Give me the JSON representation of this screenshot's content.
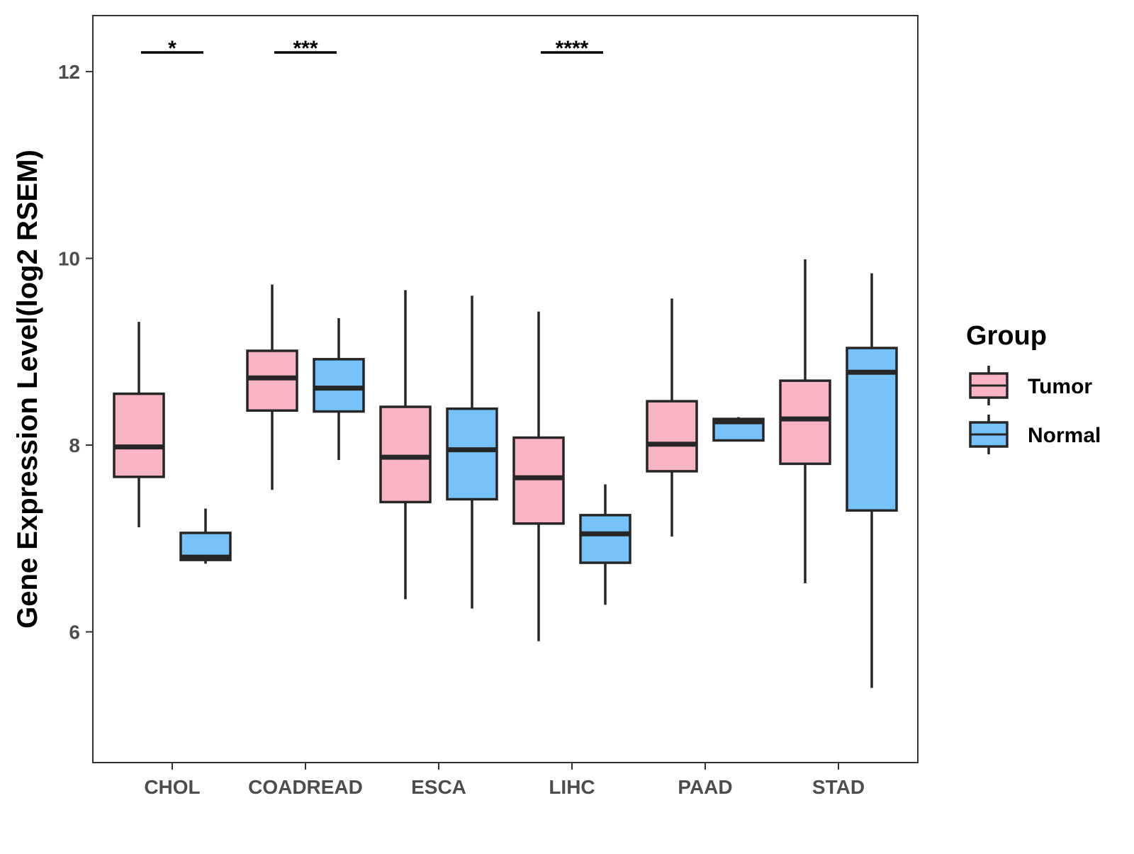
{
  "chart_data": {
    "type": "box",
    "title": "",
    "xlabel": "",
    "ylabel": "Gene Expression Level(log2 RSEM)",
    "ylim": [
      4.6,
      12.6
    ],
    "yticks": [
      6,
      8,
      10,
      12
    ],
    "categories": [
      "CHOL",
      "COADREAD",
      "ESCA",
      "LIHC",
      "PAAD",
      "STAD"
    ],
    "legend": {
      "title": "Group",
      "position": "right",
      "entries": [
        "Tumor",
        "Normal"
      ]
    },
    "series": [
      {
        "name": "Tumor",
        "color": "#FBB4C4",
        "boxes": [
          {
            "category": "CHOL",
            "min": 7.12,
            "q1": 7.66,
            "median": 7.98,
            "q3": 8.55,
            "max": 9.32
          },
          {
            "category": "COADREAD",
            "min": 7.52,
            "q1": 8.37,
            "median": 8.72,
            "q3": 9.01,
            "max": 9.72
          },
          {
            "category": "ESCA",
            "min": 6.35,
            "q1": 7.39,
            "median": 7.87,
            "q3": 8.41,
            "max": 9.66
          },
          {
            "category": "LIHC",
            "min": 5.9,
            "q1": 7.16,
            "median": 7.65,
            "q3": 8.08,
            "max": 9.43
          },
          {
            "category": "PAAD",
            "min": 7.02,
            "q1": 7.72,
            "median": 8.01,
            "q3": 8.47,
            "max": 9.57
          },
          {
            "category": "STAD",
            "min": 6.52,
            "q1": 7.8,
            "median": 8.28,
            "q3": 8.69,
            "max": 9.99
          }
        ]
      },
      {
        "name": "Normal",
        "color": "#74C2F8",
        "boxes": [
          {
            "category": "CHOL",
            "min": 6.73,
            "q1": 6.77,
            "median": 6.8,
            "q3": 7.06,
            "max": 7.32
          },
          {
            "category": "COADREAD",
            "min": 7.84,
            "q1": 8.36,
            "median": 8.61,
            "q3": 8.92,
            "max": 9.36
          },
          {
            "category": "ESCA",
            "min": 6.25,
            "q1": 7.42,
            "median": 7.95,
            "q3": 8.39,
            "max": 9.6
          },
          {
            "category": "LIHC",
            "min": 6.29,
            "q1": 6.74,
            "median": 7.05,
            "q3": 7.25,
            "max": 7.58
          },
          {
            "category": "PAAD",
            "min": 8.05,
            "q1": 8.05,
            "median": 8.25,
            "q3": 8.28,
            "max": 8.3
          },
          {
            "category": "STAD",
            "min": 5.4,
            "q1": 7.3,
            "median": 8.78,
            "q3": 9.04,
            "max": 9.84
          }
        ]
      }
    ],
    "annotations": [
      {
        "category": "CHOL",
        "label": "*"
      },
      {
        "category": "COADREAD",
        "label": "***"
      },
      {
        "category": "LIHC",
        "label": "****"
      }
    ],
    "grid": false
  }
}
